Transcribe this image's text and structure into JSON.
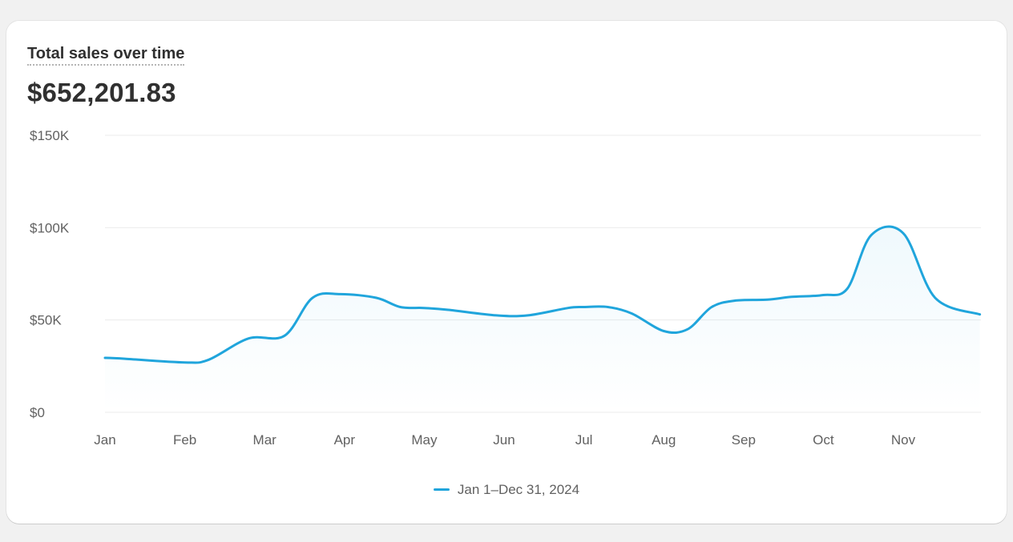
{
  "card": {
    "title": "Total sales over time",
    "total": "$652,201.83"
  },
  "colors": {
    "series": "#20a5dc",
    "grid": "#ebebeb",
    "axis_text": "#616161"
  },
  "chart_data": {
    "type": "line",
    "title": "Total sales over time",
    "x_tick_labels": [
      "Jan",
      "Feb",
      "Mar",
      "Apr",
      "May",
      "Jun",
      "Jul",
      "Aug",
      "Sep",
      "Oct",
      "Nov"
    ],
    "y_tick_labels": [
      "$0",
      "$50K",
      "$100K",
      "$150K"
    ],
    "y_ticks": [
      0,
      50000,
      100000,
      150000
    ],
    "ylim": [
      0,
      150000
    ],
    "xlim": [
      0,
      11
    ],
    "grid": true,
    "legend_position": "bottom-center",
    "series": [
      {
        "name": "Jan 1–Dec 31, 2024",
        "x": [
          0,
          0.25,
          1,
          1.3,
          1.8,
          2.25,
          2.6,
          2.95,
          3.4,
          3.7,
          4.0,
          4.3,
          4.9,
          5.3,
          5.8,
          6.0,
          6.3,
          6.6,
          7.0,
          7.3,
          7.6,
          7.9,
          8.3,
          8.6,
          9.0,
          9.3,
          9.6,
          10.0,
          10.4,
          10.96
        ],
        "y": [
          29500,
          29000,
          27000,
          28500,
          40000,
          41500,
          62000,
          64000,
          62000,
          57000,
          56500,
          55500,
          52500,
          52500,
          56500,
          57000,
          57000,
          53500,
          44000,
          45000,
          57000,
          60500,
          61000,
          62500,
          63500,
          67000,
          96000,
          97000,
          62000,
          53000
        ]
      }
    ]
  }
}
